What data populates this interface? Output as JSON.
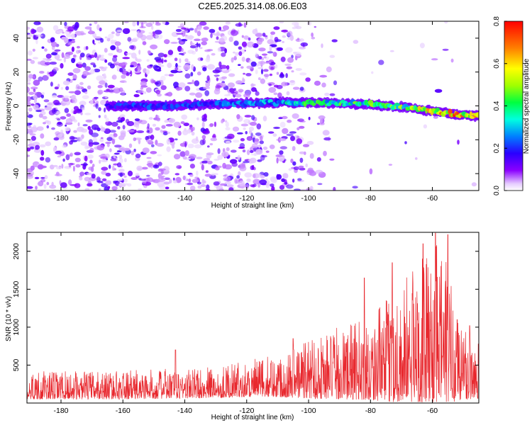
{
  "chart_data": [
    {
      "type": "heatmap",
      "title": "C2E5.2025.314.08.06.E03",
      "xlabel": "Height of straight line (km)",
      "ylabel": "Frequency (Hz)",
      "xlim": [
        -191,
        -45
      ],
      "ylim": [
        -50,
        50
      ],
      "x_ticks": [
        -180,
        -160,
        -140,
        -120,
        -100,
        -80,
        -60
      ],
      "y_ticks": [
        -40,
        -20,
        0,
        20,
        40
      ],
      "x_tick_labels": [
        "-180",
        "-160",
        "-140",
        "-120",
        "-100",
        "-80",
        "-60"
      ],
      "y_tick_labels": [
        "-40",
        "-20",
        "0",
        "20",
        "40"
      ],
      "colorbar": {
        "label": "Normalized spectral amplitude",
        "range": [
          0,
          0.8
        ],
        "ticks": [
          0.0,
          0.2,
          0.4,
          0.6,
          0.8
        ],
        "tick_labels": [
          "0.0",
          "0.2",
          "0.4",
          "0.6",
          "0.8"
        ]
      },
      "noise_region_x": [
        -191,
        -112
      ],
      "signal_trace": {
        "x": [
          -165,
          -150,
          -130,
          -110,
          -100,
          -90,
          -80,
          -70,
          -60,
          -50,
          -45
        ],
        "freq": [
          0,
          0,
          1,
          2,
          2,
          1.5,
          1,
          -0.5,
          -3,
          -5.5,
          -6
        ],
        "amplitude": [
          0.22,
          0.22,
          0.24,
          0.32,
          0.42,
          0.42,
          0.44,
          0.48,
          0.62,
          0.72,
          0.55
        ]
      }
    },
    {
      "type": "line",
      "xlabel": "Height of straight line (km)",
      "ylabel": "SNR (10 * v/v)",
      "xlim": [
        -191,
        -45
      ],
      "ylim": [
        0,
        2250
      ],
      "x_ticks": [
        -180,
        -160,
        -140,
        -120,
        -100,
        -80,
        -60
      ],
      "y_ticks": [
        500,
        1000,
        1500,
        2000
      ],
      "x_tick_labels": [
        "-180",
        "-160",
        "-140",
        "-120",
        "-100",
        "-80",
        "-60"
      ],
      "y_tick_labels": [
        "500",
        "1000",
        "1500",
        "2000"
      ],
      "series": [
        {
          "name": "SNR",
          "color": "#e8282e",
          "envelope_x": [
            -191,
            -175,
            -160,
            -140,
            -130,
            -120,
            -110,
            -100,
            -90,
            -80,
            -75,
            -70,
            -65,
            -60,
            -57,
            -55,
            -50,
            -45
          ],
          "envelope_low": [
            50,
            50,
            50,
            60,
            70,
            80,
            80,
            60,
            50,
            40,
            20,
            10,
            10,
            10,
            10,
            10,
            30,
            60
          ],
          "envelope_high": [
            420,
            420,
            430,
            460,
            480,
            560,
            650,
            900,
            1000,
            1150,
            1350,
            1600,
            1900,
            2000,
            2200,
            1800,
            1100,
            1000
          ],
          "peaks": [
            {
              "x": -143,
              "y": 700
            },
            {
              "x": -105,
              "y": 850
            },
            {
              "x": -82,
              "y": 1650
            },
            {
              "x": -73,
              "y": 1850
            },
            {
              "x": -63,
              "y": 2100
            },
            {
              "x": -59,
              "y": 2240
            },
            {
              "x": -55,
              "y": 2220
            },
            {
              "x": -52,
              "y": 1100
            },
            {
              "x": -48,
              "y": 1020
            }
          ]
        }
      ]
    }
  ]
}
